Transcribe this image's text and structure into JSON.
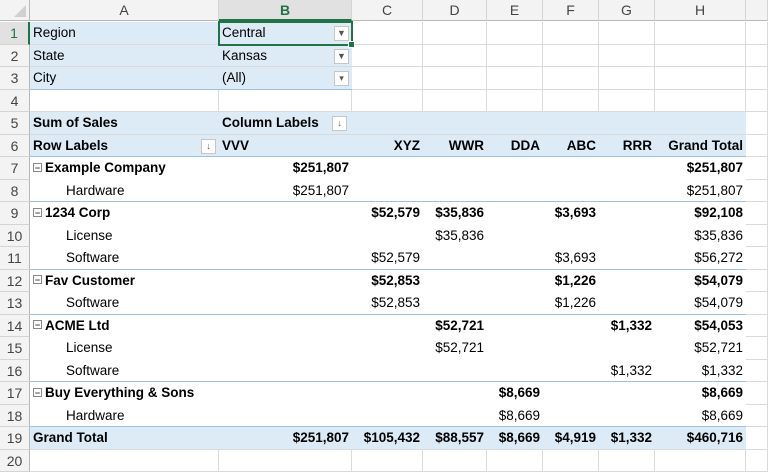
{
  "columns": [
    "A",
    "B",
    "C",
    "D",
    "E",
    "F",
    "G",
    "H"
  ],
  "active_column": "B",
  "active_row": 1,
  "row_numbers": [
    "1",
    "2",
    "3",
    "4",
    "5",
    "6",
    "7",
    "8",
    "9",
    "10",
    "11",
    "12",
    "13",
    "14",
    "15",
    "16",
    "17",
    "18",
    "19",
    "20"
  ],
  "filters": [
    {
      "label": "Region",
      "value": "Central",
      "icon": "filter-applied-icon"
    },
    {
      "label": "State",
      "value": "Kansas",
      "icon": "filter-applied-icon"
    },
    {
      "label": "City",
      "value": "(All)",
      "icon": "dropdown-arrow-icon"
    }
  ],
  "pivot": {
    "values_label": "Sum of Sales",
    "column_labels_header": "Column Labels",
    "row_labels_header": "Row Labels",
    "column_headers": [
      "VVV",
      "XYZ",
      "WWR",
      "DDA",
      "ABC",
      "RRR",
      "Grand Total"
    ],
    "rows": [
      {
        "label": "Example Company",
        "level": 0,
        "values": [
          "$251,807",
          "",
          "",
          "",
          "",
          "",
          "$251,807"
        ]
      },
      {
        "label": "Hardware",
        "level": 1,
        "values": [
          "$251,807",
          "",
          "",
          "",
          "",
          "",
          "$251,807"
        ]
      },
      {
        "label": "1234 Corp",
        "level": 0,
        "values": [
          "",
          "$52,579",
          "$35,836",
          "",
          "$3,693",
          "",
          "$92,108"
        ]
      },
      {
        "label": "License",
        "level": 1,
        "values": [
          "",
          "",
          "$35,836",
          "",
          "",
          "",
          "$35,836"
        ]
      },
      {
        "label": "Software",
        "level": 1,
        "values": [
          "",
          "$52,579",
          "",
          "",
          "$3,693",
          "",
          "$56,272"
        ]
      },
      {
        "label": "Fav Customer",
        "level": 0,
        "values": [
          "",
          "$52,853",
          "",
          "",
          "$1,226",
          "",
          "$54,079"
        ]
      },
      {
        "label": "Software",
        "level": 1,
        "values": [
          "",
          "$52,853",
          "",
          "",
          "$1,226",
          "",
          "$54,079"
        ]
      },
      {
        "label": "ACME Ltd",
        "level": 0,
        "values": [
          "",
          "",
          "$52,721",
          "",
          "",
          "$1,332",
          "$54,053"
        ]
      },
      {
        "label": "License",
        "level": 1,
        "values": [
          "",
          "",
          "$52,721",
          "",
          "",
          "",
          "$52,721"
        ]
      },
      {
        "label": "Software",
        "level": 1,
        "values": [
          "",
          "",
          "",
          "",
          "",
          "$1,332",
          "$1,332"
        ]
      },
      {
        "label": "Buy Everything & Sons",
        "level": 0,
        "values": [
          "",
          "",
          "",
          "$8,669",
          "",
          "",
          "$8,669"
        ]
      },
      {
        "label": "Hardware",
        "level": 1,
        "values": [
          "",
          "",
          "",
          "$8,669",
          "",
          "",
          "$8,669"
        ]
      }
    ],
    "grand_total": {
      "label": "Grand Total",
      "values": [
        "$251,807",
        "$105,432",
        "$88,557",
        "$8,669",
        "$4,919",
        "$1,332",
        "$460,716"
      ]
    }
  },
  "colors": {
    "band": "#ddebf7",
    "selection": "#217346",
    "border": "#9bc2e6"
  }
}
